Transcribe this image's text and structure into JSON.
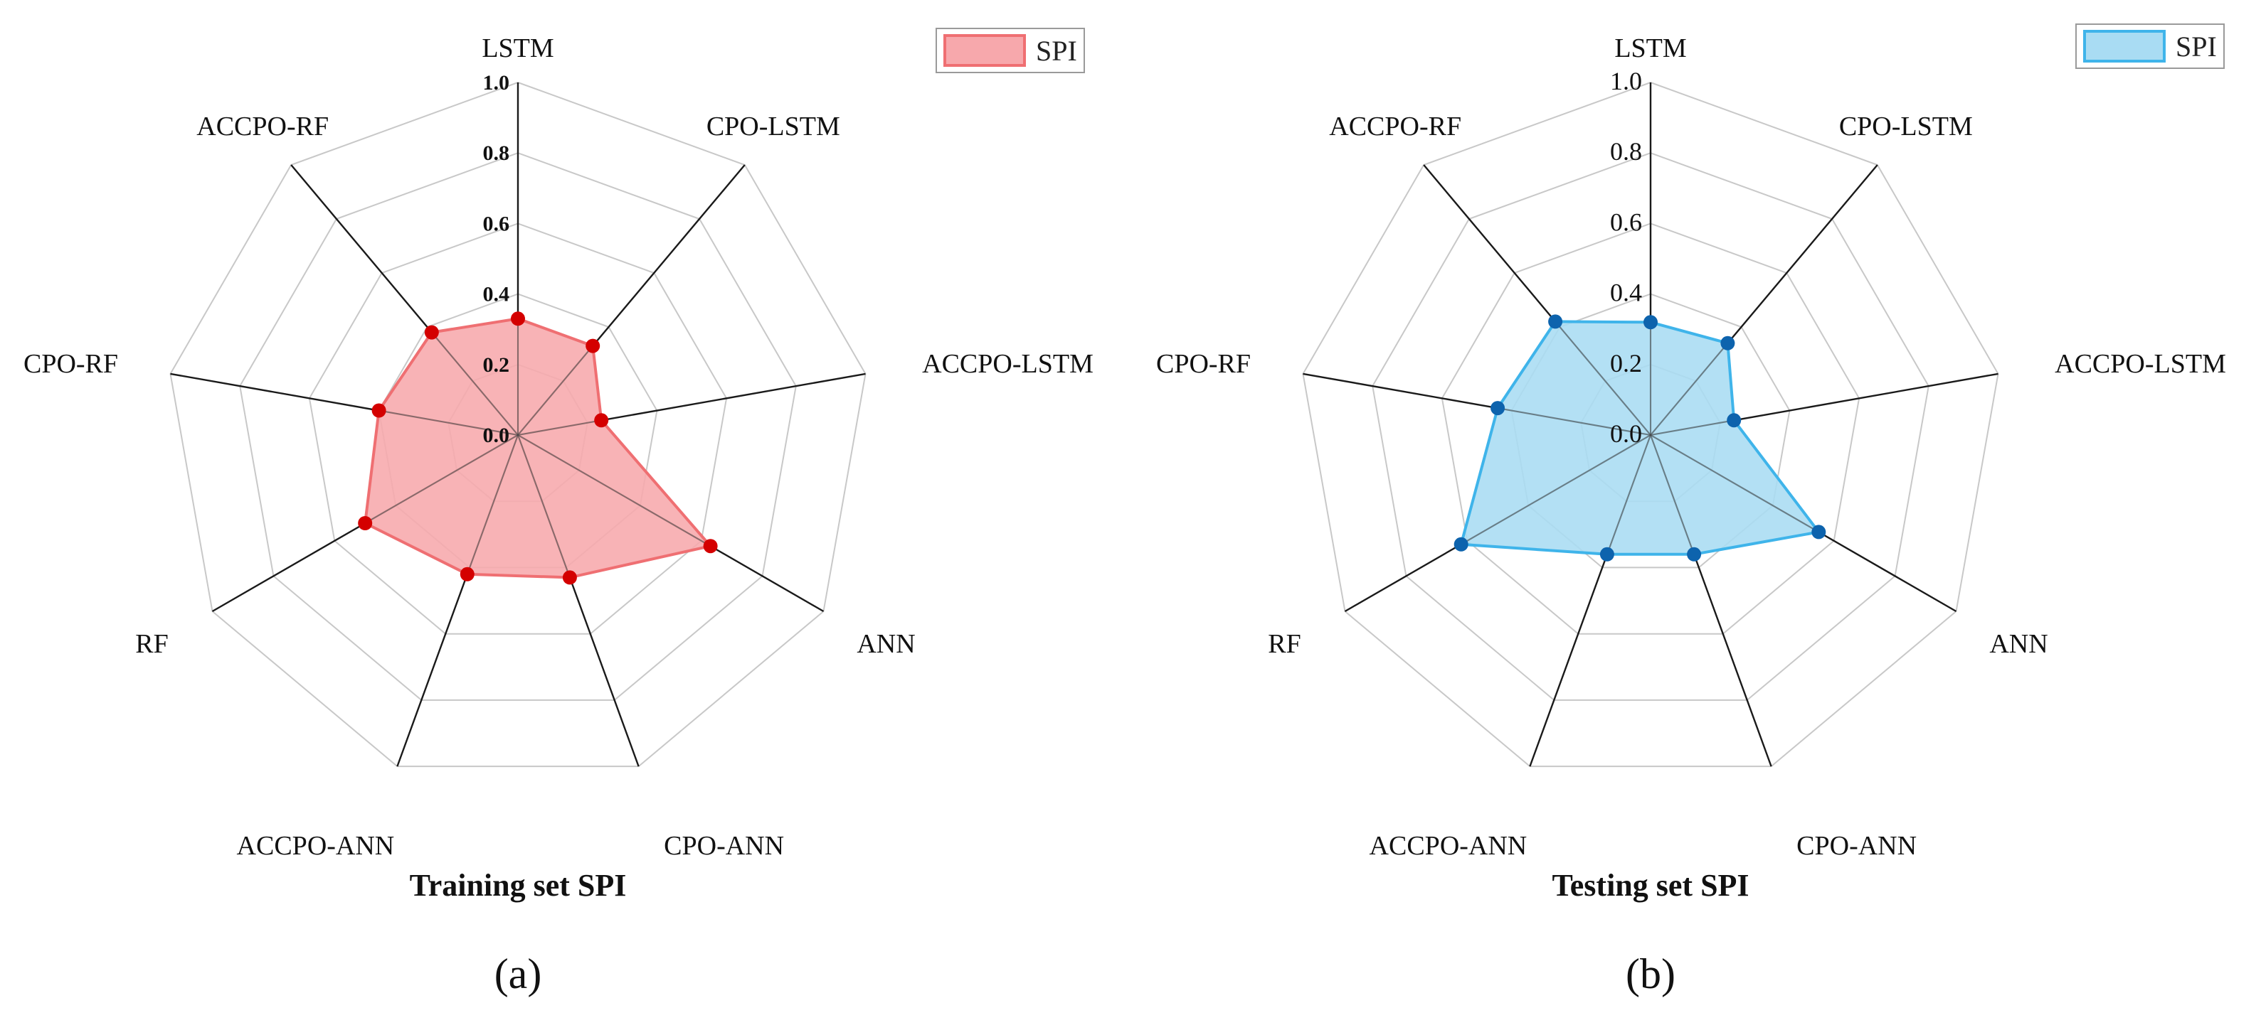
{
  "chart_data": [
    {
      "type": "radar",
      "panel_label": "(a)",
      "title": "Training set SPI",
      "categories": [
        "LSTM",
        "CPO-LSTM",
        "ACCPO-LSTM",
        "ANN",
        "CPO-ANN",
        "ACCPO-ANN",
        "RF",
        "CPO-RF",
        "ACCPO-RF"
      ],
      "radial_ticks": [
        "0.0",
        "0.2",
        "0.4",
        "0.6",
        "0.8",
        "1.0"
      ],
      "rlim": [
        0,
        1.0
      ],
      "grid": true,
      "grid_shape": "polygon",
      "legend": {
        "position": "top-right",
        "entries": [
          "SPI"
        ]
      },
      "series": [
        {
          "name": "SPI",
          "values": [
            0.33,
            0.33,
            0.24,
            0.63,
            0.43,
            0.42,
            0.5,
            0.4,
            0.38
          ],
          "color": "#d40000",
          "fill": "#f7a8ac"
        }
      ]
    },
    {
      "type": "radar",
      "panel_label": "(b)",
      "title": "Testing set SPI",
      "categories": [
        "LSTM",
        "CPO-LSTM",
        "ACCPO-LSTM",
        "ANN",
        "CPO-ANN",
        "ACCPO-ANN",
        "RF",
        "CPO-RF",
        "ACCPO-RF"
      ],
      "radial_ticks": [
        "0.0",
        "0.2",
        "0.4",
        "0.6",
        "0.8",
        "1.0"
      ],
      "rlim": [
        0,
        1.0
      ],
      "grid": true,
      "grid_shape": "polygon",
      "legend": {
        "position": "top-right",
        "entries": [
          "SPI"
        ]
      },
      "series": [
        {
          "name": "SPI",
          "values": [
            0.32,
            0.34,
            0.24,
            0.55,
            0.36,
            0.36,
            0.62,
            0.44,
            0.42
          ],
          "color": "#0d63ad",
          "fill": "#a9dcf3"
        }
      ]
    }
  ],
  "colors": {
    "panel_a_line": "#ef6f72",
    "panel_b_line": "#3fb4ea",
    "grid": "#c8c8c8",
    "spoke": "#1a1a1a"
  }
}
